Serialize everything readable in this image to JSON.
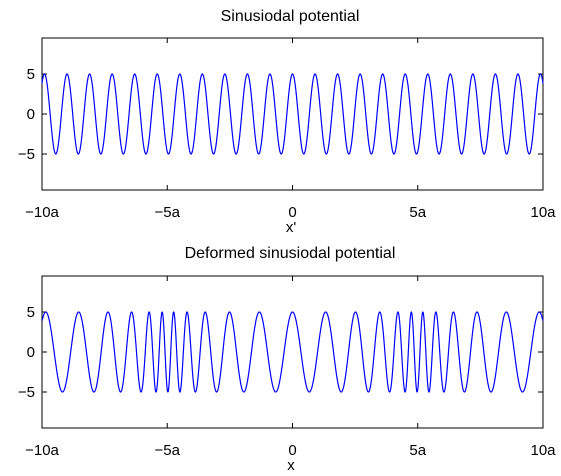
{
  "chart_data": [
    {
      "type": "line",
      "title": "Sinusiodal potential",
      "xlabel": "x'",
      "ylabel": "",
      "xlim": [
        -10,
        10
      ],
      "ylim": [
        -9.5,
        9.5
      ],
      "xticks": [
        -10,
        -5,
        0,
        5,
        10
      ],
      "xtick_labels": [
        "−10a",
        "−5a",
        "0",
        "5a",
        "10a"
      ],
      "yticks": [
        5,
        0,
        -5
      ],
      "ytick_labels": [
        "5",
        "0",
        "−5"
      ],
      "grid": false,
      "series": [
        {
          "color": "#0000ff",
          "function": "5*cos(2*pi*x/0.9)",
          "amplitude": 5,
          "period": 0.9
        }
      ]
    },
    {
      "type": "line",
      "title": "Deformed sinusiodal potential",
      "xlabel": "x",
      "ylabel": "",
      "xlim": [
        -10,
        10
      ],
      "ylim": [
        -9.5,
        9.5
      ],
      "xticks": [
        -10,
        -5,
        0,
        5,
        10
      ],
      "xtick_labels": [
        "−10a",
        "−5a",
        "0",
        "5a",
        "10a"
      ],
      "yticks": [
        5,
        0,
        -5
      ],
      "ytick_labels": [
        "5",
        "0",
        "−5"
      ],
      "grid": false,
      "series": [
        {
          "color": "#0000ff",
          "function": "5*cos(2*pi*u/0.9), x = u + 0.52*sin(2*pi*u/10)",
          "amplitude": 5,
          "period": 0.9,
          "deformation_amplitude": 0.52,
          "deformation_period": 10
        }
      ]
    }
  ]
}
